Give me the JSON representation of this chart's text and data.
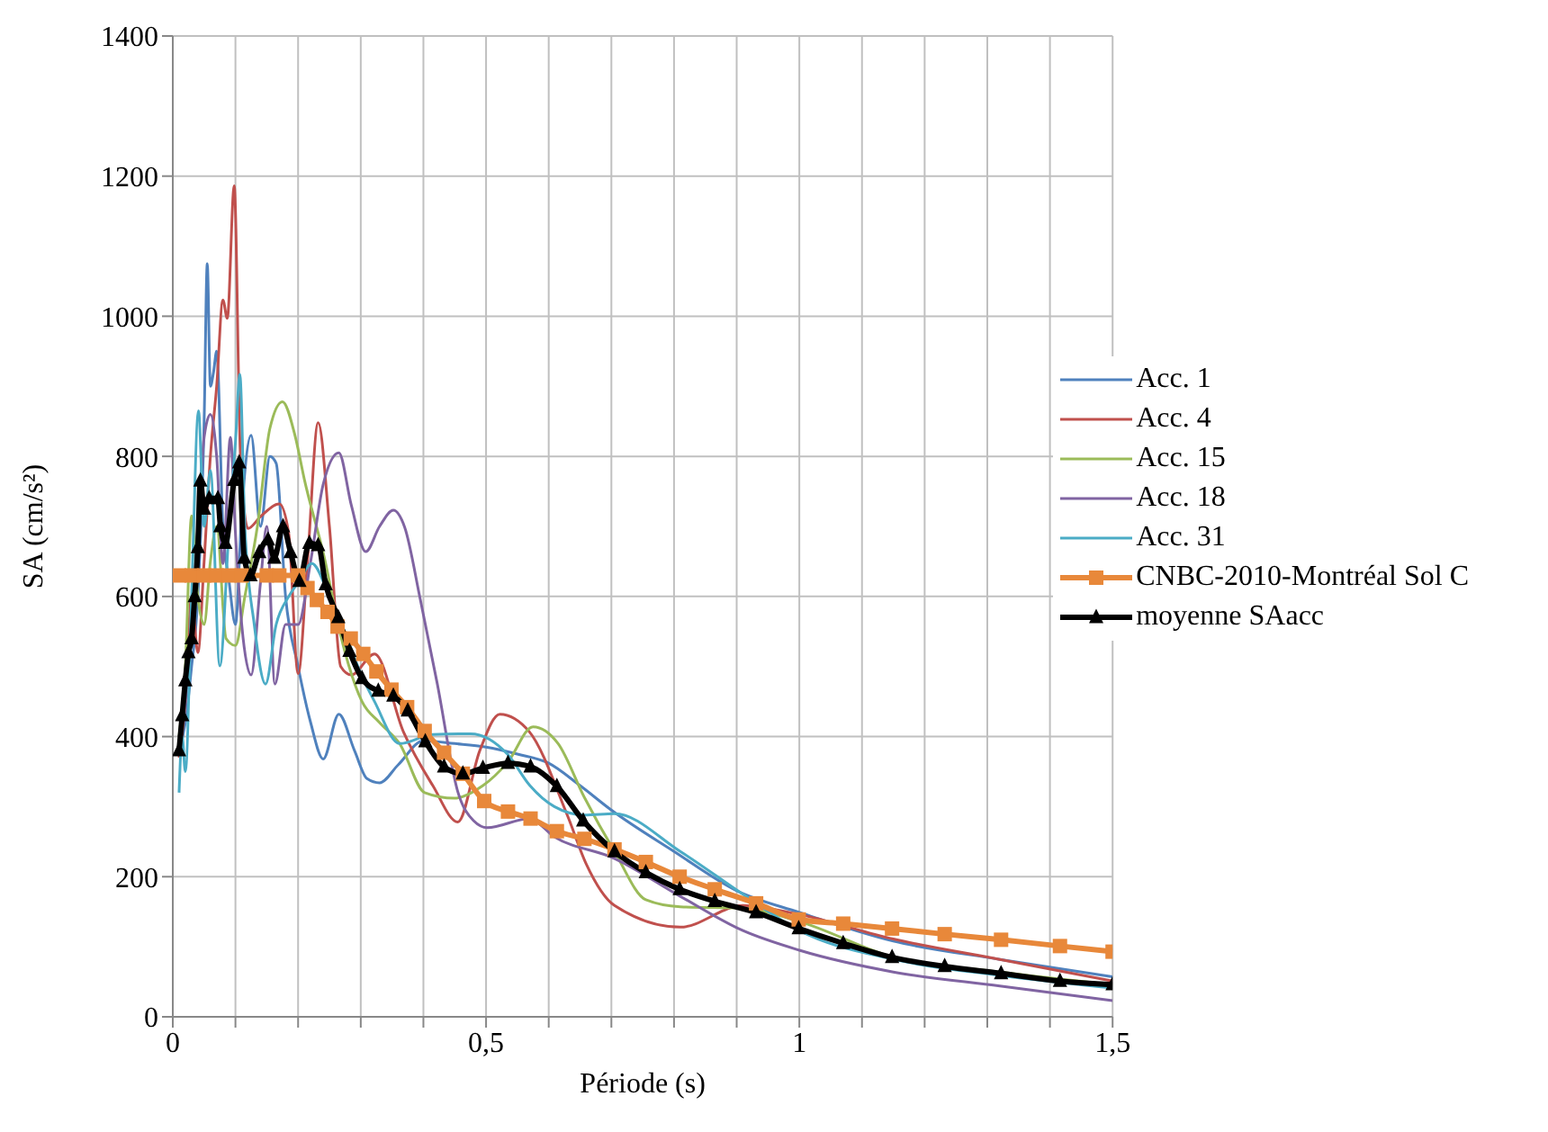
{
  "chart_data": {
    "type": "line",
    "xlabel": "Période (s)",
    "ylabel": "SA (cm/s²)",
    "xlim": [
      0,
      1.5
    ],
    "ylim": [
      0,
      1400
    ],
    "xticks": [
      {
        "value": 0,
        "label": "0"
      },
      {
        "value": 0.1,
        "label": null
      },
      {
        "value": 0.2,
        "label": null
      },
      {
        "value": 0.3,
        "label": null
      },
      {
        "value": 0.4,
        "label": null
      },
      {
        "value": 0.5,
        "label": "0,5"
      },
      {
        "value": 0.6,
        "label": null
      },
      {
        "value": 0.7,
        "label": null
      },
      {
        "value": 0.8,
        "label": null
      },
      {
        "value": 0.9,
        "label": null
      },
      {
        "value": 1,
        "label": "1"
      },
      {
        "value": 1.1,
        "label": null
      },
      {
        "value": 1.2,
        "label": null
      },
      {
        "value": 1.3,
        "label": null
      },
      {
        "value": 1.4,
        "label": null
      },
      {
        "value": 1.5,
        "label": "1,5"
      }
    ],
    "yticks": [
      0,
      200,
      400,
      600,
      800,
      1000,
      1200,
      1400
    ],
    "grid": true,
    "legend": "right",
    "line_style": "solid",
    "series": [
      {
        "name": "Acc. 1",
        "color": "#4f81bd",
        "marker": "none",
        "x": [
          0.01,
          0.02,
          0.03,
          0.04,
          0.05,
          0.055,
          0.06,
          0.065,
          0.07,
          0.08,
          0.09,
          0.1,
          0.11,
          0.125,
          0.14,
          0.155,
          0.165,
          0.18,
          0.2,
          0.22,
          0.24,
          0.265,
          0.29,
          0.31,
          0.33,
          0.36,
          0.4,
          0.45,
          0.5,
          0.55,
          0.6,
          0.65,
          0.7,
          0.8,
          0.9,
          1.0,
          1.15,
          1.32,
          1.5
        ],
        "values": [
          380,
          420,
          500,
          600,
          850,
          1075,
          900,
          920,
          950,
          700,
          620,
          560,
          720,
          830,
          700,
          800,
          790,
          600,
          500,
          420,
          368,
          432,
          380,
          340,
          334,
          360,
          394,
          390,
          385,
          375,
          362,
          330,
          295,
          236,
          180,
          149,
          108,
          82,
          57
        ]
      },
      {
        "name": "Acc. 4",
        "color": "#c0504d",
        "marker": "none",
        "x": [
          0.01,
          0.02,
          0.03,
          0.04,
          0.05,
          0.06,
          0.07,
          0.08,
          0.087,
          0.098,
          0.108,
          0.12,
          0.14,
          0.17,
          0.185,
          0.2,
          0.215,
          0.232,
          0.25,
          0.268,
          0.285,
          0.322,
          0.368,
          0.415,
          0.455,
          0.49,
          0.522,
          0.569,
          0.63,
          0.66,
          0.705,
          0.81,
          0.91,
          1.0,
          1.15,
          1.32,
          1.5
        ],
        "values": [
          370,
          450,
          600,
          520,
          650,
          800,
          900,
          1023,
          997,
          1186,
          800,
          697,
          714,
          732,
          690,
          490,
          650,
          848,
          700,
          500,
          488,
          518,
          407,
          330,
          278,
          380,
          432,
          407,
          287,
          218,
          159,
          128,
          159,
          146,
          111,
          82,
          51
        ]
      },
      {
        "name": "Acc. 15",
        "color": "#9bbb59",
        "marker": "none",
        "x": [
          0.01,
          0.02,
          0.03,
          0.04,
          0.05,
          0.06,
          0.07,
          0.085,
          0.1,
          0.115,
          0.135,
          0.155,
          0.175,
          0.195,
          0.21,
          0.242,
          0.268,
          0.302,
          0.33,
          0.362,
          0.402,
          0.449,
          0.495,
          0.535,
          0.575,
          0.615,
          0.657,
          0.705,
          0.755,
          0.81,
          0.91,
          1.0,
          1.15,
          1.32,
          1.5
        ],
        "values": [
          400,
          500,
          715,
          600,
          560,
          650,
          700,
          540,
          530,
          600,
          700,
          840,
          878,
          830,
          767,
          655,
          544,
          450,
          420,
          390,
          320,
          312,
          330,
          364,
          414,
          390,
          313,
          236,
          167,
          157,
          155,
          136,
          85,
          64,
          46
        ]
      },
      {
        "name": "Acc. 18",
        "color": "#8064a2",
        "marker": "none",
        "x": [
          0.01,
          0.02,
          0.03,
          0.04,
          0.05,
          0.06,
          0.07,
          0.08,
          0.092,
          0.1,
          0.11,
          0.125,
          0.14,
          0.15,
          0.163,
          0.18,
          0.2,
          0.22,
          0.24,
          0.265,
          0.285,
          0.308,
          0.33,
          0.352,
          0.37,
          0.395,
          0.422,
          0.455,
          0.48,
          0.502,
          0.569,
          0.609,
          0.705,
          0.81,
          0.91,
          1.0,
          1.15,
          1.32,
          1.5
        ],
        "values": [
          400,
          450,
          560,
          700,
          827,
          860,
          800,
          647,
          827,
          690,
          560,
          488,
          620,
          700,
          475,
          560,
          560,
          650,
          760,
          805,
          730,
          664,
          700,
          723,
          699,
          596,
          476,
          321,
          280,
          270,
          283,
          257,
          226,
          172,
          123,
          95,
          64,
          44,
          23
        ]
      },
      {
        "name": "Acc. 31",
        "color": "#4bacc6",
        "marker": "none",
        "x": [
          0.01,
          0.015,
          0.02,
          0.03,
          0.041,
          0.05,
          0.06,
          0.075,
          0.09,
          0.1,
          0.107,
          0.115,
          0.13,
          0.148,
          0.165,
          0.185,
          0.2,
          0.222,
          0.25,
          0.275,
          0.3,
          0.322,
          0.362,
          0.415,
          0.475,
          0.535,
          0.57,
          0.609,
          0.657,
          0.705,
          0.81,
          0.91,
          1.0,
          1.15,
          1.32,
          1.5
        ],
        "values": [
          320,
          400,
          350,
          600,
          865,
          700,
          780,
          501,
          700,
          820,
          917,
          700,
          560,
          475,
          560,
          600,
          620,
          647,
          600,
          548,
          490,
          450,
          390,
          403,
          404,
          374,
          330,
          300,
          288,
          290,
          236,
          175,
          123,
          82,
          59,
          41
        ]
      },
      {
        "name": "CNBC-2010-Montréal Sol C",
        "color": "#e8883a",
        "marker": "square",
        "x": [
          0.01,
          0.03,
          0.05,
          0.07,
          0.09,
          0.11,
          0.15,
          0.17,
          0.2,
          0.215,
          0.23,
          0.247,
          0.263,
          0.284,
          0.304,
          0.325,
          0.349,
          0.374,
          0.402,
          0.433,
          0.463,
          0.497,
          0.535,
          0.571,
          0.613,
          0.657,
          0.705,
          0.755,
          0.809,
          0.865,
          0.931,
          0.999,
          1.07,
          1.148,
          1.232,
          1.322,
          1.416,
          1.5
        ],
        "values": [
          630,
          630,
          630,
          630,
          630,
          630,
          630,
          630,
          630,
          612,
          595,
          578,
          557,
          540,
          518,
          493,
          467,
          442,
          408,
          377,
          347,
          308,
          293,
          283,
          265,
          254,
          239,
          221,
          200,
          182,
          162,
          139,
          133,
          126,
          118,
          110,
          101,
          93
        ]
      },
      {
        "name": "moyenne SAacc",
        "color": "#000000",
        "marker": "triangle",
        "x": [
          0.01,
          0.015,
          0.02,
          0.025,
          0.03,
          0.035,
          0.04,
          0.044,
          0.05,
          0.058,
          0.072,
          0.076,
          0.084,
          0.098,
          0.106,
          0.114,
          0.124,
          0.138,
          0.152,
          0.162,
          0.176,
          0.188,
          0.202,
          0.218,
          0.232,
          0.244,
          0.264,
          0.282,
          0.302,
          0.328,
          0.352,
          0.375,
          0.403,
          0.433,
          0.463,
          0.495,
          0.535,
          0.571,
          0.613,
          0.655,
          0.705,
          0.755,
          0.809,
          0.865,
          0.931,
          0.999,
          1.07,
          1.148,
          1.232,
          1.322,
          1.416,
          1.5
        ],
        "values": [
          380,
          430,
          480,
          520,
          540,
          600,
          670,
          765,
          725,
          740,
          740,
          700,
          676,
          766,
          791,
          655,
          630,
          663,
          681,
          655,
          700,
          663,
          622,
          676,
          673,
          617,
          570,
          522,
          483,
          465,
          458,
          437,
          393,
          357,
          347,
          355,
          362,
          357,
          329,
          280,
          236,
          206,
          182,
          165,
          149,
          126,
          105,
          85,
          72,
          62,
          51,
          46
        ]
      }
    ]
  }
}
